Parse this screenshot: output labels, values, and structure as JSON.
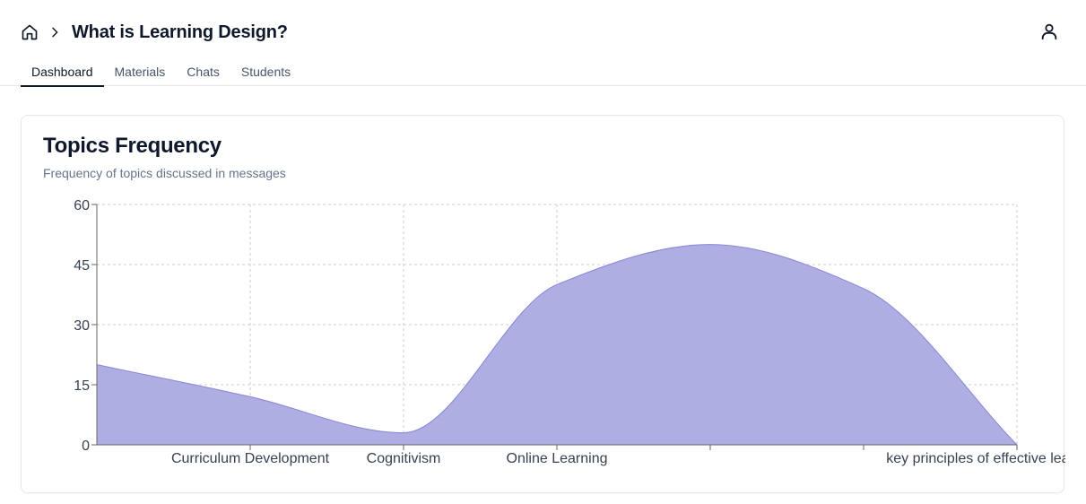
{
  "header": {
    "title": "What is Learning Design?",
    "icons": {
      "home": "home-icon",
      "separator": "chevron-right-icon",
      "user": "user-icon"
    }
  },
  "tabs": [
    {
      "label": "Dashboard",
      "active": true
    },
    {
      "label": "Materials",
      "active": false
    },
    {
      "label": "Chats",
      "active": false
    },
    {
      "label": "Students",
      "active": false
    }
  ],
  "card": {
    "title": "Topics Frequency",
    "subtitle": "Frequency of topics discussed in messages"
  },
  "colors": {
    "area_fill": "#aeaee2",
    "area_stroke": "#8884d8",
    "grid": "#cccccc",
    "axis": "#666666"
  },
  "chart_data": {
    "type": "area",
    "categories": [
      "",
      "Curriculum Development",
      "Cognitivism",
      "Online Learning",
      "",
      "",
      "key principles of effective learning design"
    ],
    "values": [
      20,
      12,
      3,
      40,
      50,
      39,
      0
    ],
    "ylim": [
      0,
      60
    ],
    "yticks": [
      0,
      15,
      30,
      45,
      60
    ],
    "grid": true,
    "curve": "monotone"
  }
}
